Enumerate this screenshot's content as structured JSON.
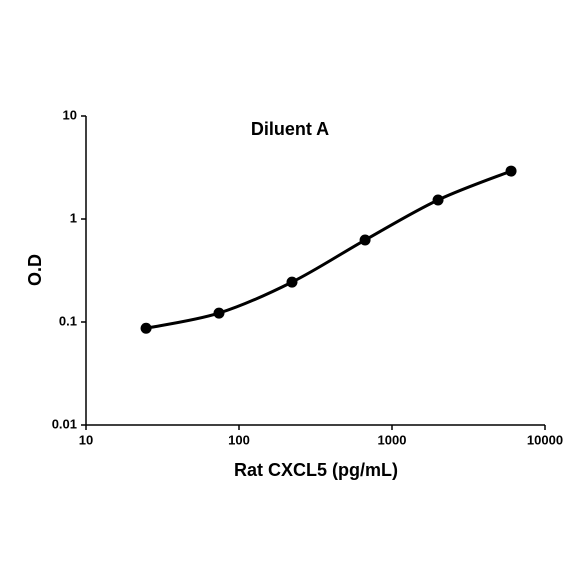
{
  "chart_data": {
    "type": "line",
    "title": "Diluent A",
    "xlabel": "Rat CXCL5 (pg/mL)",
    "ylabel": "O.D",
    "x": [
      24.7,
      74,
      222,
      667,
      2000,
      6000
    ],
    "values": [
      0.087,
      0.122,
      0.244,
      0.625,
      1.53,
      2.92
    ],
    "color": "#000000",
    "xscale": "log",
    "yscale": "log",
    "xlim": [
      10,
      10000
    ],
    "xticks": [
      10,
      100,
      1000,
      10000
    ],
    "ylim": [
      0.01,
      10
    ],
    "yticks": [
      0.01,
      0.1,
      1,
      10
    ],
    "grid": false,
    "smooth": true,
    "markers": true
  }
}
